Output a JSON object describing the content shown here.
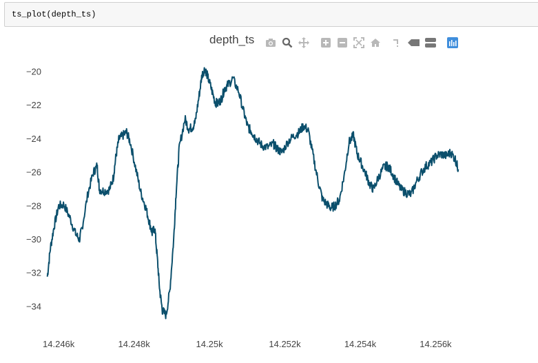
{
  "code_cell": {
    "text": "ts_plot(depth_ts)"
  },
  "modebar": {
    "buttons": [
      {
        "name": "camera-icon"
      },
      {
        "name": "zoom-icon"
      },
      {
        "name": "pan-icon"
      },
      {
        "name": "zoom-in-icon"
      },
      {
        "name": "zoom-out-icon"
      },
      {
        "name": "autoscale-icon"
      },
      {
        "name": "home-icon"
      },
      {
        "name": "spike-lines-icon"
      },
      {
        "name": "hover-closest-icon"
      },
      {
        "name": "hover-compare-icon"
      },
      {
        "name": "plotly-logo-icon"
      }
    ],
    "colors": {
      "icon": "#b8b8b8",
      "icon_dark": "#777777",
      "logo": "#3f8edc"
    }
  },
  "chart_data": {
    "type": "line",
    "title": "depth_ts",
    "xlabel": "",
    "ylabel": "",
    "xlim": [
      14245.65,
      14256.65
    ],
    "ylim": [
      -35.5,
      -19.0
    ],
    "x_ticks": [
      14246,
      14248,
      14250,
      14252,
      14254,
      14256
    ],
    "x_tick_labels": [
      "14.246k",
      "14.248k",
      "14.25k",
      "14.252k",
      "14.254k",
      "14.256k"
    ],
    "y_ticks": [
      -20,
      -22,
      -24,
      -26,
      -28,
      -30,
      -32,
      -34
    ],
    "y_tick_labels": [
      "−20",
      "−22",
      "−24",
      "−26",
      "−28",
      "−30",
      "−32",
      "−34"
    ],
    "grid": false,
    "line_color": "#0b4f6c",
    "series": [
      {
        "x": [
          14245.7,
          14245.78,
          14245.88,
          14246.0,
          14246.14,
          14246.3,
          14246.44,
          14246.55,
          14246.62,
          14246.78,
          14246.92,
          14247.02,
          14247.08,
          14247.2,
          14247.35,
          14247.45,
          14247.52,
          14247.6,
          14247.7,
          14247.8,
          14247.9,
          14248.05,
          14248.18,
          14248.3,
          14248.4,
          14248.48,
          14248.55,
          14248.62,
          14248.68,
          14248.75,
          14248.85,
          14248.95,
          14249.05,
          14249.12,
          14249.2,
          14249.35,
          14249.45,
          14249.55,
          14249.62,
          14249.72,
          14249.8,
          14249.88,
          14249.94,
          14250.05,
          14250.15,
          14250.22,
          14250.32,
          14250.4,
          14250.48,
          14250.62,
          14250.78,
          14250.92,
          14251.02,
          14251.1,
          14251.18,
          14251.28,
          14251.4,
          14251.55,
          14251.7,
          14251.8,
          14251.92,
          14252.1,
          14252.25,
          14252.38,
          14252.5,
          14252.62,
          14252.75,
          14252.88,
          14253.0,
          14253.12,
          14253.22,
          14253.32,
          14253.45,
          14253.58,
          14253.7,
          14253.82,
          14253.92,
          14254.02,
          14254.15,
          14254.25,
          14254.35,
          14254.48,
          14254.62,
          14254.72,
          14254.82,
          14254.95,
          14255.08,
          14255.22,
          14255.35,
          14255.48,
          14255.62,
          14255.75,
          14255.88,
          14256.02,
          14256.15,
          14256.28,
          14256.4,
          14256.52,
          14256.6
        ],
        "y": [
          -32.2,
          -30.5,
          -29.2,
          -28.0,
          -27.9,
          -28.7,
          -29.6,
          -30.0,
          -29.3,
          -27.2,
          -26.0,
          -25.6,
          -27.0,
          -27.1,
          -27.0,
          -26.3,
          -25.0,
          -24.0,
          -23.8,
          -23.6,
          -24.2,
          -25.8,
          -27.2,
          -28.0,
          -28.9,
          -29.6,
          -29.3,
          -31.2,
          -33.0,
          -34.2,
          -34.5,
          -33.0,
          -30.0,
          -27.0,
          -24.5,
          -22.8,
          -23.4,
          -23.3,
          -23.0,
          -21.5,
          -20.2,
          -19.8,
          -20.2,
          -21.0,
          -21.8,
          -21.9,
          -21.6,
          -21.0,
          -20.8,
          -20.4,
          -21.2,
          -22.5,
          -23.3,
          -23.5,
          -23.8,
          -24.1,
          -24.4,
          -24.5,
          -24.3,
          -24.6,
          -24.8,
          -24.1,
          -23.8,
          -23.6,
          -23.2,
          -23.5,
          -25.0,
          -26.5,
          -27.6,
          -27.9,
          -28.1,
          -28.0,
          -27.6,
          -26.1,
          -24.2,
          -23.8,
          -24.9,
          -25.4,
          -26.1,
          -26.7,
          -27.0,
          -26.3,
          -25.7,
          -25.6,
          -25.9,
          -26.5,
          -27.0,
          -27.2,
          -27.3,
          -26.6,
          -26.0,
          -25.6,
          -25.4,
          -25.0,
          -24.9,
          -25.0,
          -24.8,
          -25.2,
          -25.8
        ]
      }
    ]
  }
}
